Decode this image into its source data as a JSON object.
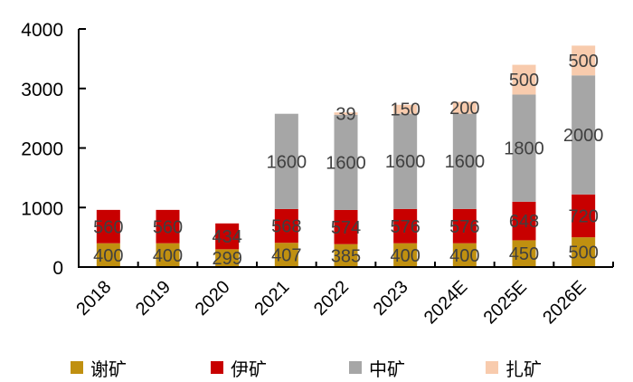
{
  "chart_data": {
    "type": "bar",
    "stacked": true,
    "title": "",
    "xlabel": "",
    "ylabel": "",
    "ylim": [
      0,
      4000
    ],
    "yticks": [
      0,
      1000,
      2000,
      3000,
      4000
    ],
    "grid": false,
    "legend_position": "bottom",
    "categories": [
      "2018",
      "2019",
      "2020",
      "2021",
      "2022",
      "2023",
      "2024E",
      "2025E",
      "2026E"
    ],
    "series": [
      {
        "name": "谢矿",
        "color": "#C09010",
        "values": [
          400,
          400,
          299,
          407,
          385,
          400,
          400,
          450,
          500
        ]
      },
      {
        "name": "伊矿",
        "color": "#C80000",
        "values": [
          560,
          560,
          434,
          568,
          574,
          576,
          576,
          648,
          720
        ]
      },
      {
        "name": "中矿",
        "color": "#A6A6A6",
        "values": [
          0,
          0,
          0,
          1600,
          1600,
          1600,
          1600,
          1800,
          2000
        ]
      },
      {
        "name": "扎矿",
        "color": "#F8CBAD",
        "values": [
          0,
          0,
          0,
          0,
          39,
          150,
          200,
          500,
          500
        ]
      }
    ],
    "data_labels": [
      [
        "400",
        "400",
        "299",
        "407",
        "385",
        "400",
        "400",
        "450",
        "500"
      ],
      [
        "560",
        "560",
        "434",
        "568",
        "574",
        "576",
        "576",
        "648",
        "720"
      ],
      [
        "",
        "",
        "",
        "1600",
        "1600",
        "1600",
        "1600",
        "1800",
        "2000"
      ],
      [
        "",
        "",
        "",
        "",
        "39",
        "150",
        "200",
        "500",
        "500"
      ]
    ]
  },
  "legend": {
    "items": [
      {
        "label": "谢矿",
        "color": "#C09010"
      },
      {
        "label": "伊矿",
        "color": "#C80000"
      },
      {
        "label": "中矿",
        "color": "#A6A6A6"
      },
      {
        "label": "扎矿",
        "color": "#F8CBAD"
      }
    ]
  }
}
